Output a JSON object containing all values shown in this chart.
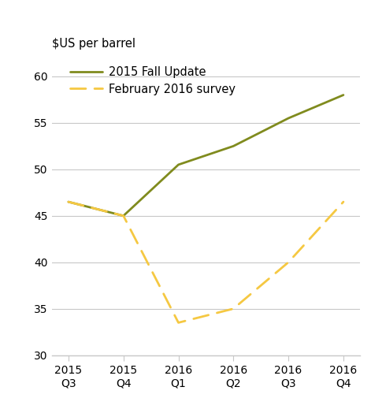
{
  "x_labels": [
    "2015\nQ3",
    "2015\nQ4",
    "2016\nQ1",
    "2016\nQ2",
    "2016\nQ3",
    "2016\nQ4"
  ],
  "x_positions": [
    0,
    1,
    2,
    3,
    4,
    5
  ],
  "series1_name": "2015 Fall Update",
  "series1_values": [
    46.5,
    45.0,
    50.5,
    52.5,
    55.5,
    58.0
  ],
  "series1_color": "#808b1e",
  "series1_linestyle": "solid",
  "series1_linewidth": 2.0,
  "series2_name": "February 2016 survey",
  "series2_values": [
    46.5,
    45.0,
    33.5,
    35.0,
    40.0,
    46.5
  ],
  "series2_color": "#f5c842",
  "series2_linestyle": "dashed",
  "series2_linewidth": 2.0,
  "ylabel": "$US per barrel",
  "ylim": [
    30,
    62
  ],
  "yticks": [
    30,
    35,
    40,
    45,
    50,
    55,
    60
  ],
  "grid_color": "#c8c8c8",
  "background_color": "#ffffff",
  "legend_fontsize": 10.5,
  "ylabel_fontsize": 10.5,
  "tick_fontsize": 10
}
